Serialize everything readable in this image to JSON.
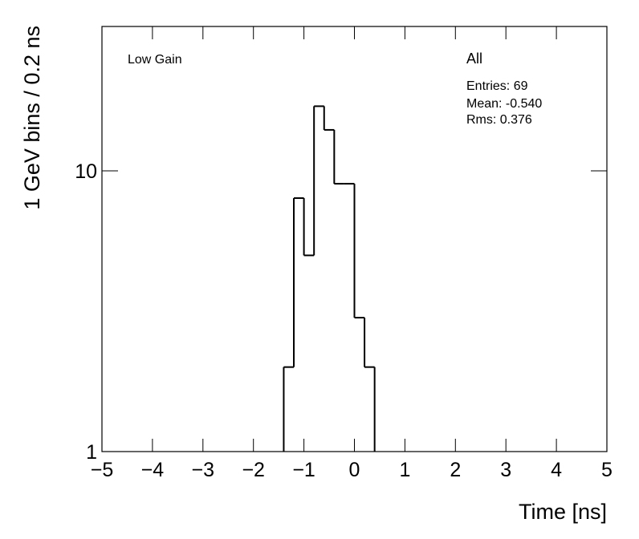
{
  "chart_data": {
    "type": "histogram",
    "title": "Low Gain",
    "stats": {
      "name": "All",
      "entries": "Entries: 69",
      "mean": "Mean: -0.540",
      "rms": "Rms: 0.376"
    },
    "x_label": "Time [ns]",
    "y_label": "1 GeV bins / 0.2 ns",
    "bins": [
      -1.4,
      -1.2,
      -1.0,
      -0.8,
      -0.6,
      -0.4,
      -0.2,
      0.0,
      0.2,
      0.4
    ],
    "values": [
      2,
      8,
      5,
      17,
      14,
      9,
      9,
      3,
      2
    ],
    "color": "#000000",
    "xlim": [
      -5,
      5
    ],
    "xticks": [
      {
        "value": -5,
        "label": "−5"
      },
      {
        "value": -4,
        "label": "−4"
      },
      {
        "value": -3,
        "label": "−3"
      },
      {
        "value": -2,
        "label": "−2"
      },
      {
        "value": -1,
        "label": "−1"
      },
      0,
      1,
      2,
      3,
      4,
      5
    ],
    "ylim": [
      1,
      32.7
    ],
    "yticks": [
      1,
      10
    ],
    "log_y": true
  }
}
